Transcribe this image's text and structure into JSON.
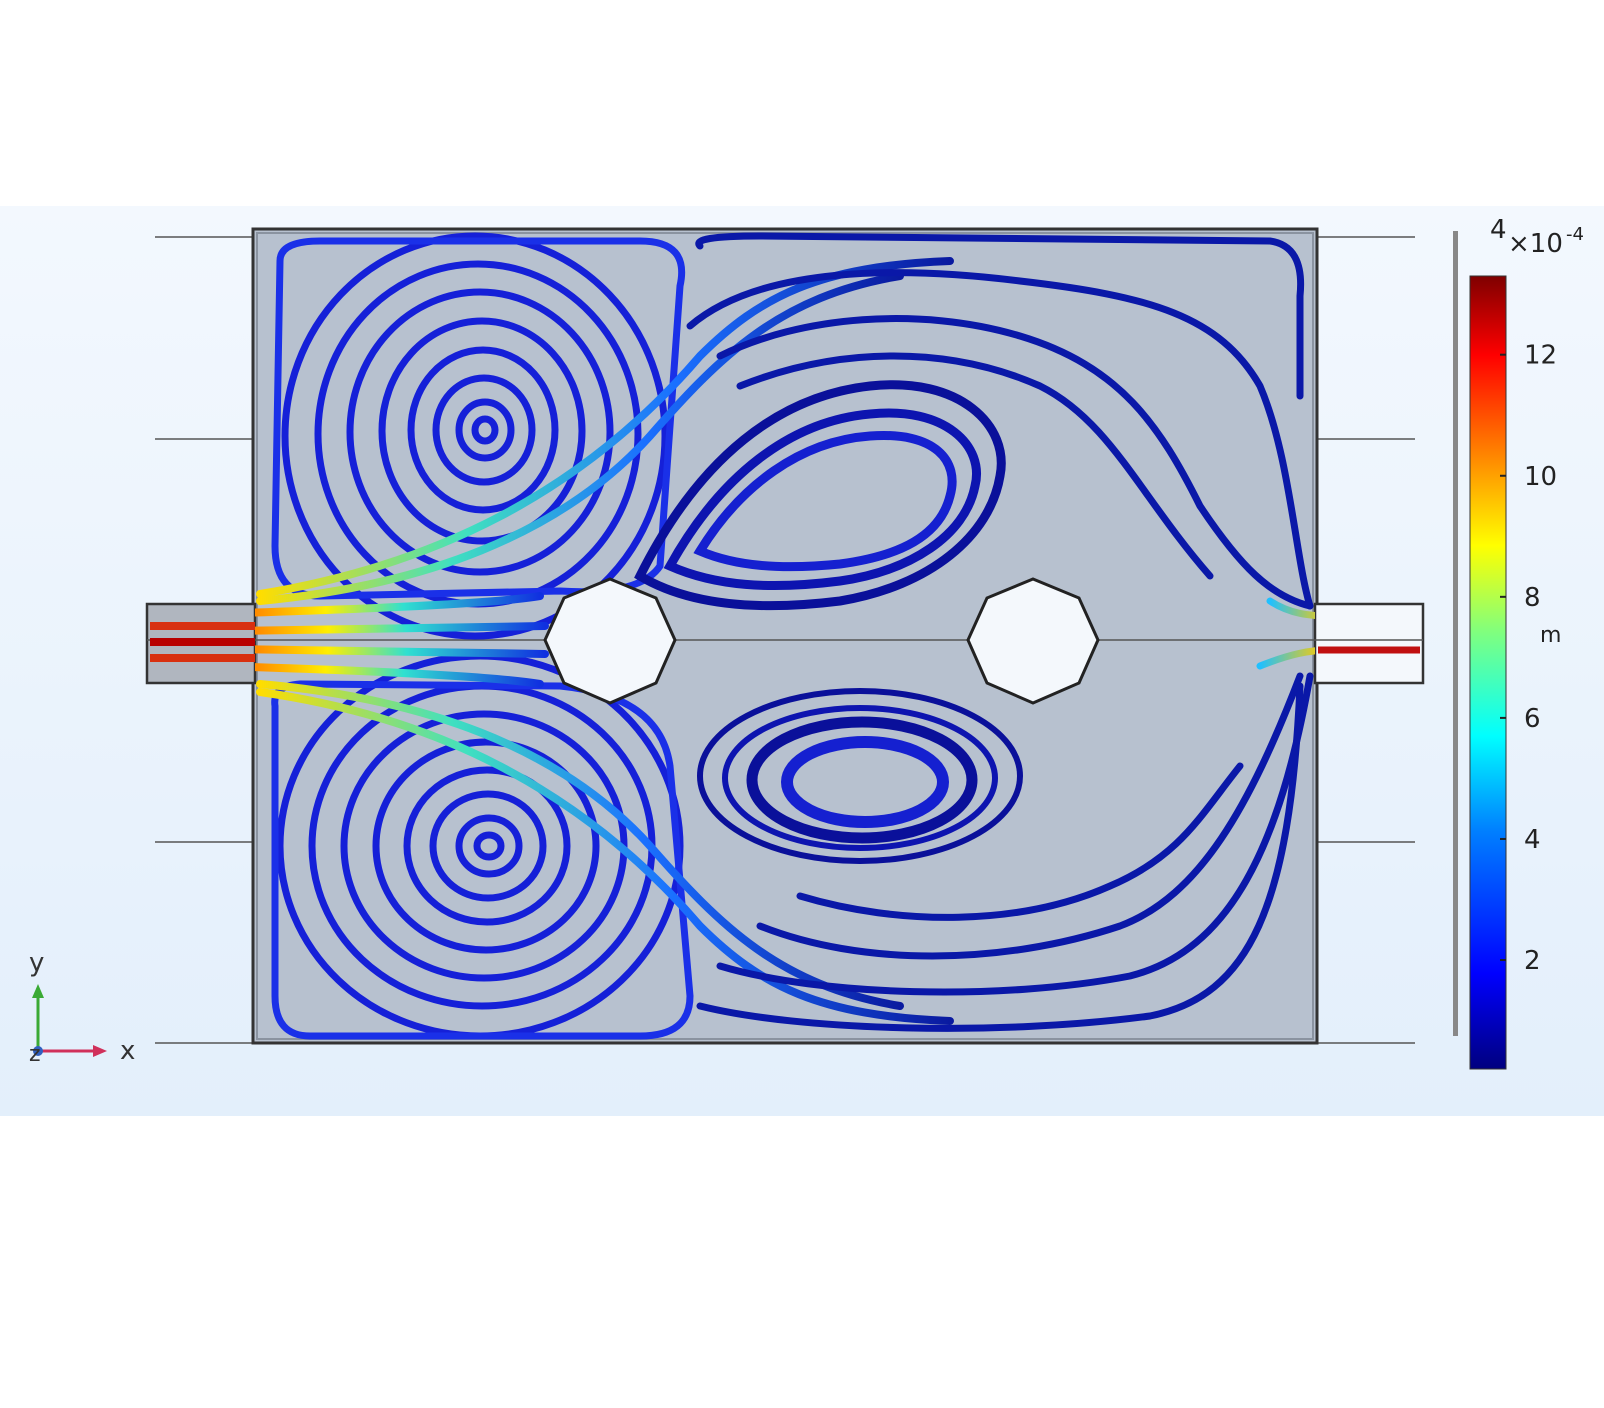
{
  "colorbar": {
    "multiplier": "×10",
    "exponent": "-4",
    "top_label": "4",
    "unit": "m",
    "ticks": [
      "12",
      "10",
      "8",
      "6",
      "4",
      "2"
    ],
    "tick_values": [
      12,
      10,
      8,
      6,
      4,
      2
    ],
    "range": [
      0.2,
      13.3
    ],
    "colormap": [
      "#00007f",
      "#0000ff",
      "#007fff",
      "#00ffff",
      "#7fff7f",
      "#ffff00",
      "#ff7f00",
      "#ff0000",
      "#7f0000"
    ]
  },
  "triad": {
    "x_label": "x",
    "y_label": "y",
    "z_label": "z",
    "x_color": "#d0305a",
    "y_color": "#3aaa35",
    "z_color": "#3060c0"
  },
  "domain_colors": {
    "fluid": "#b7c1cf",
    "streamline_low": "#0a1aa0",
    "streamline_high": "#c80000"
  }
}
